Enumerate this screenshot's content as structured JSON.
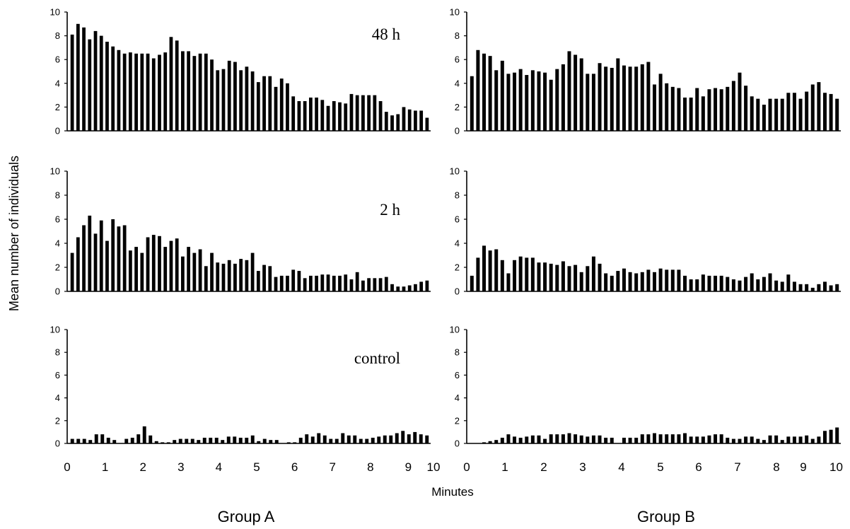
{
  "figure": {
    "ylabel": "Mean number of individuals",
    "xlabel": "Minutes",
    "groups": [
      "Group A",
      "Group B"
    ],
    "x_ticks": [
      "0",
      "1",
      "2",
      "3",
      "4",
      "5",
      "6",
      "7",
      "8",
      "9",
      "10"
    ],
    "y_ticks": [
      "0",
      "2",
      "4",
      "6",
      "8",
      "10"
    ]
  },
  "chart_data": [
    {
      "type": "bar",
      "group": "Group A",
      "label": "48 h",
      "ylim": [
        0,
        10
      ],
      "xlim": [
        0,
        10
      ],
      "values": [
        8.1,
        9.0,
        8.7,
        7.7,
        8.4,
        8.0,
        7.5,
        7.1,
        6.8,
        6.5,
        6.6,
        6.5,
        6.5,
        6.5,
        6.1,
        6.4,
        6.6,
        7.9,
        7.6,
        6.7,
        6.7,
        6.3,
        6.5,
        6.5,
        6.0,
        5.1,
        5.2,
        5.9,
        5.8,
        5.1,
        5.4,
        5.0,
        4.1,
        4.6,
        4.6,
        3.7,
        4.4,
        4.0,
        2.9,
        2.5,
        2.5,
        2.8,
        2.8,
        2.6,
        2.1,
        2.5,
        2.4,
        2.3,
        3.1,
        3.0,
        3.0,
        3.0,
        3.0,
        2.5,
        1.6,
        1.3,
        1.4,
        2.0,
        1.8,
        1.7,
        1.7,
        1.1
      ]
    },
    {
      "type": "bar",
      "group": "Group B",
      "label": "",
      "ylim": [
        0,
        10
      ],
      "xlim": [
        0,
        10
      ],
      "values": [
        4.6,
        6.8,
        6.5,
        6.3,
        5.1,
        5.9,
        4.8,
        4.9,
        5.2,
        4.7,
        5.1,
        5.0,
        4.9,
        4.3,
        5.2,
        5.6,
        6.7,
        6.4,
        6.1,
        4.8,
        4.8,
        5.7,
        5.4,
        5.3,
        6.1,
        5.5,
        5.4,
        5.4,
        5.6,
        5.8,
        3.9,
        4.8,
        4.0,
        3.7,
        3.6,
        2.8,
        2.8,
        3.6,
        2.9,
        3.5,
        3.6,
        3.5,
        3.7,
        4.2,
        4.9,
        3.8,
        2.9,
        2.7,
        2.2,
        2.7,
        2.7,
        2.7,
        3.2,
        3.2,
        2.7,
        3.3,
        3.9,
        4.1,
        3.2,
        3.1,
        2.7
      ]
    },
    {
      "type": "bar",
      "group": "Group A",
      "label": "2 h",
      "ylim": [
        0,
        10
      ],
      "xlim": [
        0,
        10
      ],
      "values": [
        3.2,
        4.5,
        5.5,
        6.3,
        4.8,
        5.9,
        4.2,
        6.0,
        5.4,
        5.5,
        3.4,
        3.7,
        3.2,
        4.5,
        4.7,
        4.6,
        3.7,
        4.2,
        4.4,
        2.9,
        3.7,
        3.2,
        3.5,
        2.1,
        3.2,
        2.4,
        2.3,
        2.6,
        2.3,
        2.7,
        2.6,
        3.2,
        1.7,
        2.2,
        2.1,
        1.2,
        1.3,
        1.3,
        1.8,
        1.7,
        1.1,
        1.3,
        1.3,
        1.4,
        1.4,
        1.3,
        1.3,
        1.4,
        1.0,
        1.6,
        0.9,
        1.1,
        1.1,
        1.1,
        1.2,
        0.6,
        0.4,
        0.4,
        0.5,
        0.6,
        0.8,
        0.9
      ]
    },
    {
      "type": "bar",
      "group": "Group B",
      "label": "",
      "ylim": [
        0,
        10
      ],
      "xlim": [
        0,
        10
      ],
      "values": [
        1.3,
        2.8,
        3.8,
        3.4,
        3.5,
        2.6,
        1.5,
        2.6,
        2.9,
        2.8,
        2.8,
        2.4,
        2.4,
        2.3,
        2.2,
        2.5,
        2.1,
        2.2,
        1.6,
        2.1,
        2.9,
        2.3,
        1.5,
        1.3,
        1.7,
        1.9,
        1.6,
        1.5,
        1.6,
        1.8,
        1.6,
        1.9,
        1.8,
        1.8,
        1.8,
        1.3,
        1.0,
        1.0,
        1.4,
        1.3,
        1.3,
        1.3,
        1.2,
        1.0,
        0.9,
        1.2,
        1.5,
        1.0,
        1.2,
        1.5,
        0.9,
        0.8,
        1.4,
        0.8,
        0.6,
        0.6,
        0.3,
        0.6,
        0.8,
        0.5,
        0.6
      ]
    },
    {
      "type": "bar",
      "group": "Group A",
      "label": "control",
      "ylim": [
        0,
        10
      ],
      "xlim": [
        0,
        10
      ],
      "values": [
        0.4,
        0.4,
        0.4,
        0.3,
        0.8,
        0.8,
        0.5,
        0.3,
        0.0,
        0.4,
        0.5,
        0.8,
        1.5,
        0.7,
        0.2,
        0.1,
        0.1,
        0.3,
        0.4,
        0.4,
        0.4,
        0.3,
        0.5,
        0.5,
        0.5,
        0.3,
        0.6,
        0.6,
        0.5,
        0.5,
        0.7,
        0.2,
        0.4,
        0.3,
        0.3,
        0.0,
        0.1,
        0.1,
        0.5,
        0.8,
        0.6,
        0.9,
        0.7,
        0.4,
        0.4,
        0.9,
        0.7,
        0.7,
        0.4,
        0.4,
        0.5,
        0.6,
        0.7,
        0.7,
        0.9,
        1.1,
        0.8,
        1.0,
        0.8,
        0.7
      ]
    },
    {
      "type": "bar",
      "group": "Group B",
      "label": "",
      "ylim": [
        0,
        10
      ],
      "xlim": [
        0,
        10
      ],
      "values": [
        0.0,
        0.0,
        0.1,
        0.2,
        0.3,
        0.5,
        0.8,
        0.6,
        0.5,
        0.6,
        0.7,
        0.7,
        0.4,
        0.8,
        0.8,
        0.8,
        0.9,
        0.8,
        0.7,
        0.6,
        0.7,
        0.7,
        0.5,
        0.5,
        0.0,
        0.5,
        0.5,
        0.5,
        0.8,
        0.8,
        0.9,
        0.8,
        0.8,
        0.8,
        0.8,
        0.9,
        0.6,
        0.6,
        0.6,
        0.7,
        0.8,
        0.8,
        0.5,
        0.4,
        0.4,
        0.6,
        0.6,
        0.4,
        0.3,
        0.7,
        0.7,
        0.3,
        0.6,
        0.6,
        0.6,
        0.7,
        0.4,
        0.6,
        1.1,
        1.2,
        1.4
      ]
    }
  ]
}
